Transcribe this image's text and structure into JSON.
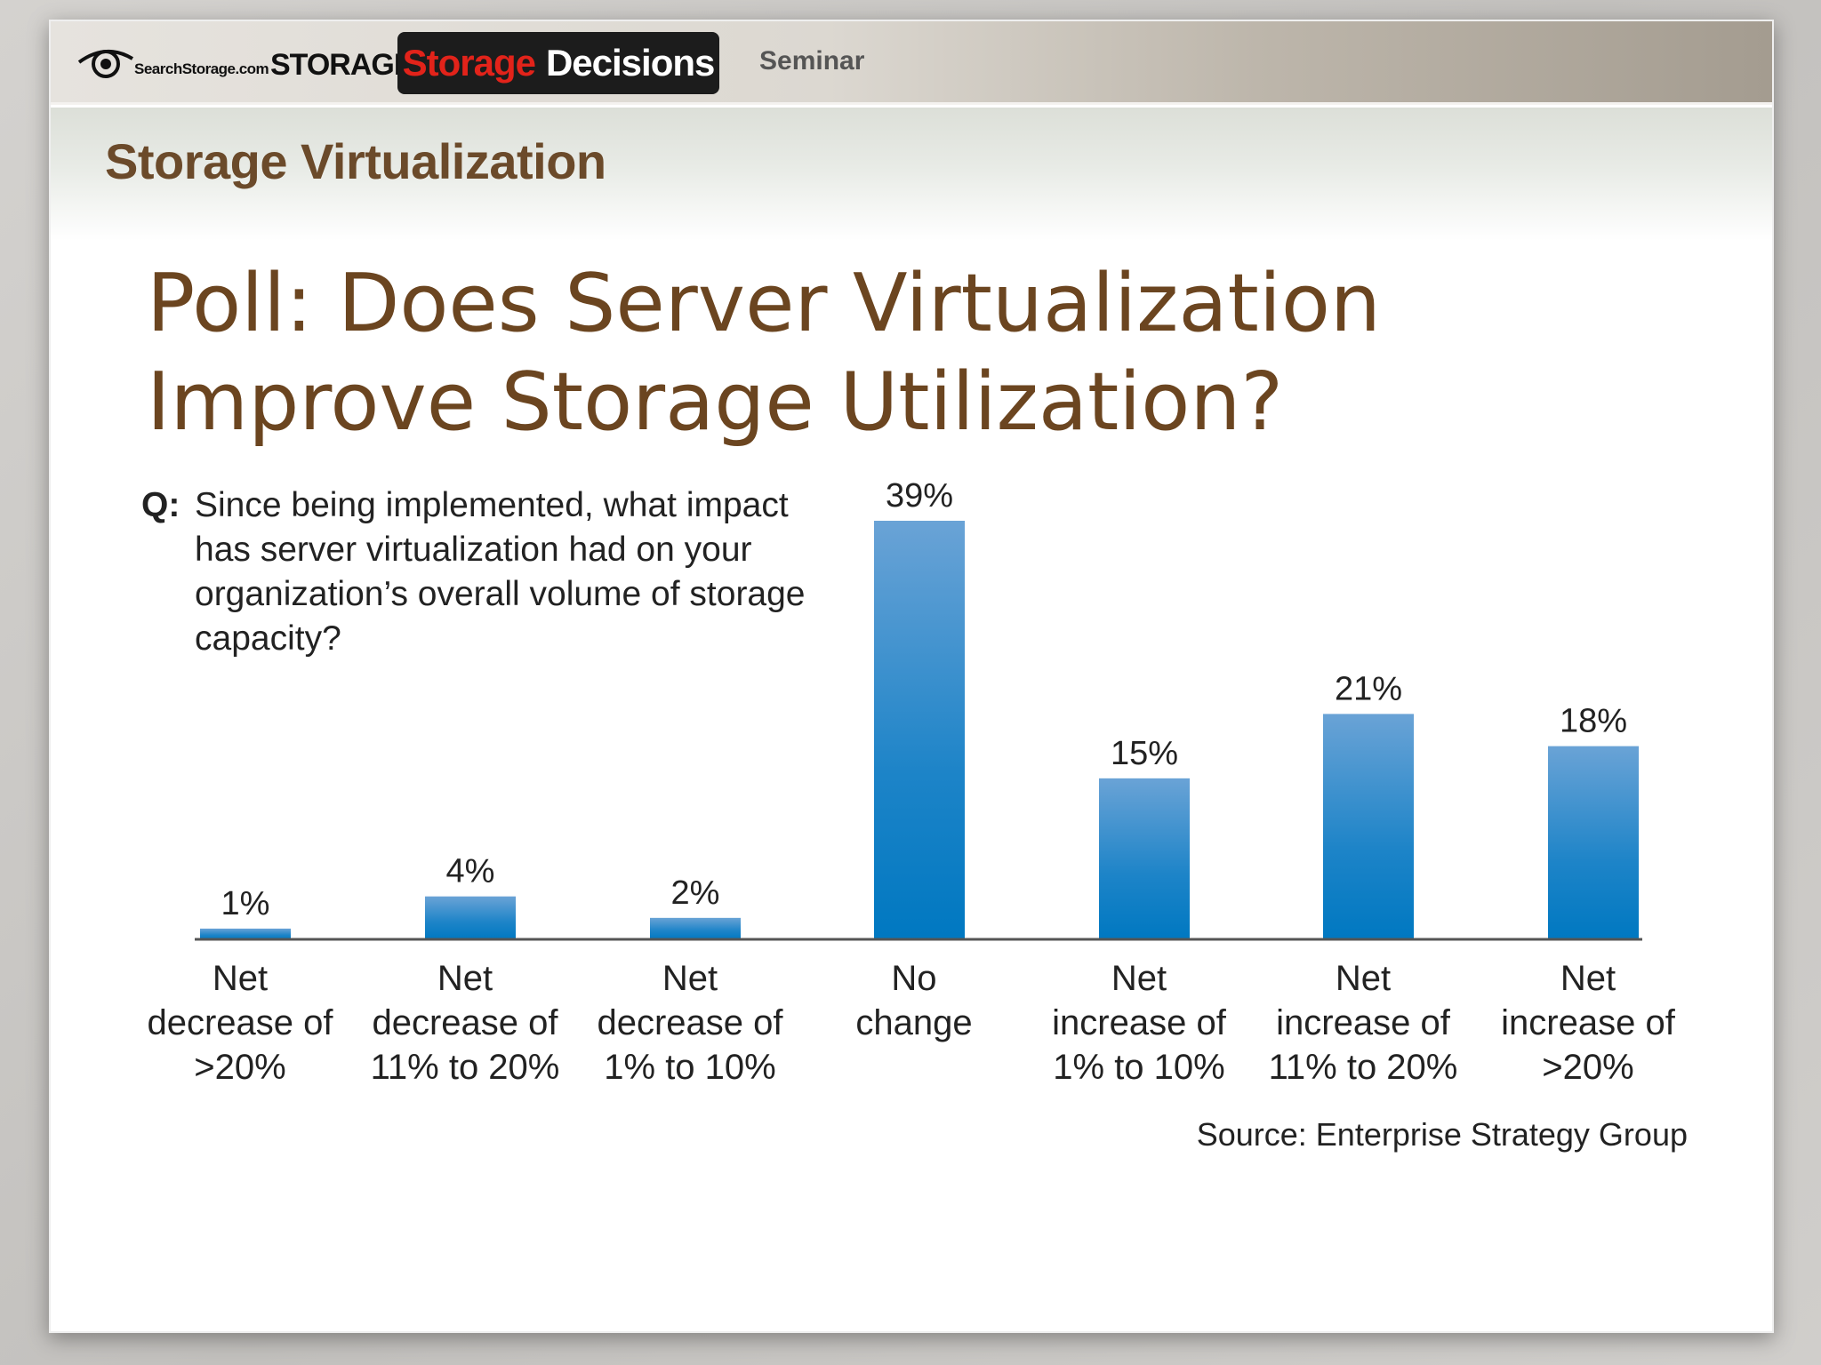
{
  "header": {
    "logo_site": "SearchStorage.com",
    "logo_storage": "STORAGE",
    "badge_part1": "Storage",
    "badge_part2": "Decisions",
    "badge_color_red": "#e2231a",
    "seminar": "Seminar"
  },
  "section_title": "Storage Virtualization",
  "slide_title_line1": "Poll: Does Server Virtualization",
  "slide_title_line2": "Improve Storage Utilization?",
  "question": {
    "label": "Q:",
    "text": "Since being implemented, what impact has server virtualization had on your organization’s overall volume of storage capacity?"
  },
  "source": "Source: Enterprise Strategy Group",
  "chart_data": {
    "type": "bar",
    "title": "",
    "xlabel": "",
    "ylabel": "",
    "ylim": [
      0,
      39
    ],
    "grid": false,
    "bar_color": "#0a7cc4",
    "categories": [
      [
        "Net",
        "decrease of",
        ">20%"
      ],
      [
        "Net",
        "decrease of",
        "11% to 20%"
      ],
      [
        "Net",
        "decrease of",
        "1% to 10%"
      ],
      [
        "No",
        "change"
      ],
      [
        "Net",
        "increase of",
        "1% to 10%"
      ],
      [
        "Net",
        "increase of",
        "11% to 20%"
      ],
      [
        "Net",
        "increase of",
        ">20%"
      ]
    ],
    "values": [
      1,
      4,
      2,
      39,
      15,
      21,
      18
    ],
    "data_labels": [
      "1%",
      "4%",
      "2%",
      "39%",
      "15%",
      "21%",
      "18%"
    ]
  }
}
